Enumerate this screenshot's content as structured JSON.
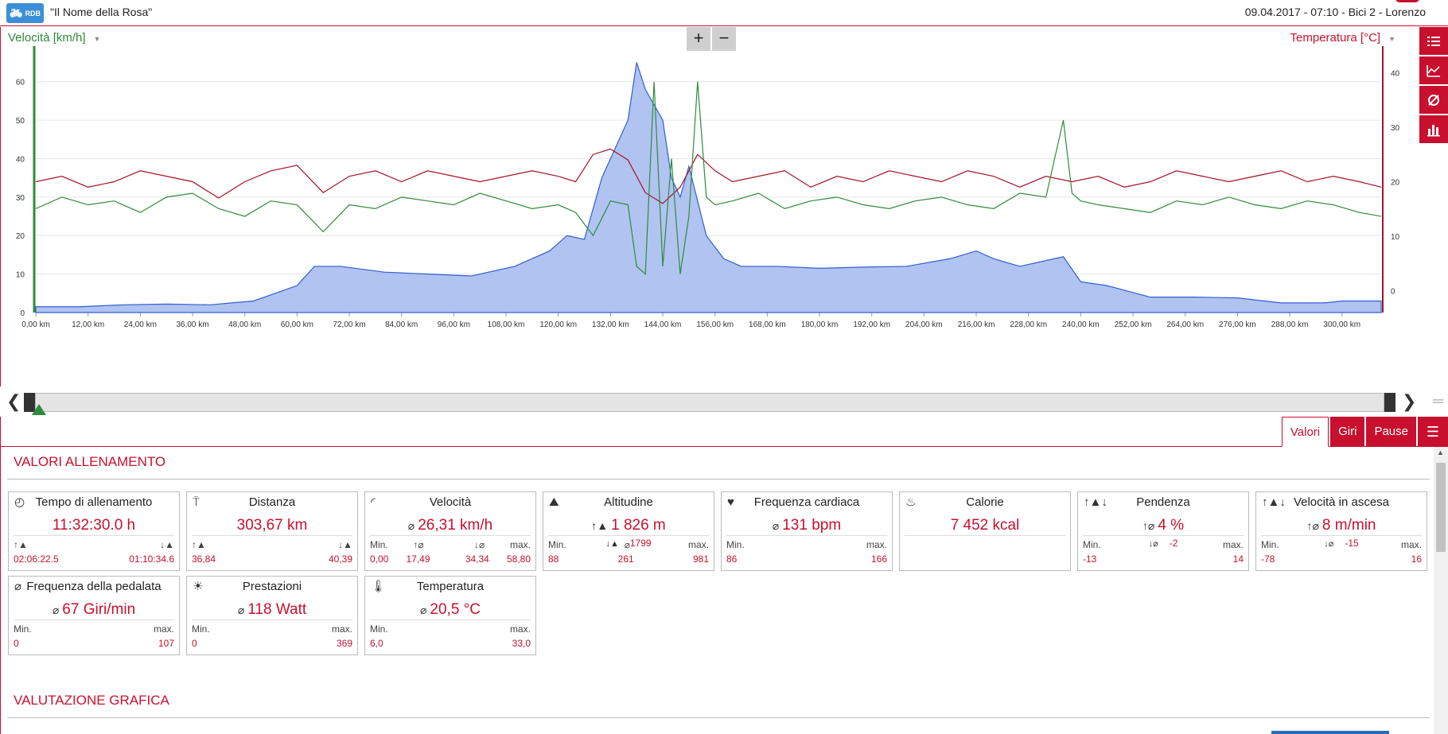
{
  "header": {
    "app_logo_text": "RDB",
    "title": "\"Il Nome della Rosa\"",
    "session_info": "09.04.2017  -  07:10  -  Bici 2  -  Lorenzo"
  },
  "chart": {
    "left_axis_label": "Velocità [km/h]",
    "right_axis_label": "Temperatura [°C]",
    "zoom_in": "+",
    "zoom_out": "−",
    "colors": {
      "speed": "#2e8b3a",
      "temperature": "#a4132a",
      "altitude_fill": "#a8bdf0",
      "altitude_line": "#2f5fd0",
      "accent": "#c8102e"
    }
  },
  "chart_data": {
    "type": "line",
    "x_label": "distance (km)",
    "x_ticks": [
      "0,00 km",
      "12,00 km",
      "24,00 km",
      "36,00 km",
      "48,00 km",
      "60,00 km",
      "72,00 km",
      "84,00 km",
      "96,00 km",
      "108,00 km",
      "120,00 km",
      "132,00 km",
      "144,00 km",
      "156,00 km",
      "168,00 km",
      "180,00 km",
      "192,00 km",
      "204,00 km",
      "216,00 km",
      "228,00 km",
      "240,00 km",
      "252,00 km",
      "264,00 km",
      "276,00 km",
      "288,00 km",
      "300,00 km"
    ],
    "xlim": [
      0,
      309
    ],
    "y_left_ticks": [
      0,
      10,
      20,
      30,
      40,
      50,
      60
    ],
    "y_left_lim": [
      0,
      68
    ],
    "y_right_ticks": [
      0,
      10,
      20,
      30,
      40
    ],
    "y_right_lim": [
      -4,
      44
    ],
    "series": [
      {
        "name": "Velocità [km/h]",
        "axis": "left",
        "kind": "line",
        "x": [
          0,
          6,
          12,
          18,
          24,
          30,
          36,
          42,
          48,
          54,
          60,
          66,
          72,
          78,
          84,
          90,
          96,
          102,
          108,
          114,
          120,
          124,
          128,
          132,
          136,
          138,
          140,
          142,
          144,
          146,
          148,
          150,
          152,
          154,
          156,
          160,
          166,
          172,
          178,
          184,
          190,
          196,
          202,
          208,
          214,
          220,
          226,
          232,
          236,
          238,
          240,
          244,
          250,
          256,
          262,
          268,
          274,
          280,
          286,
          292,
          298,
          304,
          309
        ],
        "y": [
          27,
          30,
          28,
          29,
          26,
          30,
          31,
          27,
          25,
          29,
          28,
          21,
          28,
          27,
          30,
          29,
          28,
          31,
          29,
          27,
          28,
          26,
          20,
          29,
          28,
          12,
          10,
          60,
          12,
          40,
          10,
          25,
          60,
          30,
          28,
          29,
          31,
          27,
          29,
          30,
          28,
          27,
          29,
          30,
          28,
          27,
          31,
          30,
          50,
          31,
          29,
          28,
          27,
          26,
          29,
          28,
          30,
          28,
          27,
          29,
          28,
          26,
          25
        ]
      },
      {
        "name": "Temperatura [°C]",
        "axis": "right",
        "kind": "line",
        "x": [
          0,
          6,
          12,
          18,
          24,
          30,
          36,
          42,
          48,
          54,
          60,
          66,
          72,
          78,
          84,
          90,
          96,
          102,
          108,
          114,
          120,
          124,
          128,
          132,
          136,
          140,
          144,
          148,
          152,
          156,
          160,
          166,
          172,
          178,
          184,
          190,
          196,
          202,
          208,
          214,
          220,
          226,
          232,
          238,
          244,
          250,
          256,
          262,
          268,
          274,
          280,
          286,
          292,
          298,
          304,
          309
        ],
        "y": [
          20,
          21,
          19,
          20,
          22,
          21,
          20,
          17,
          20,
          22,
          23,
          18,
          21,
          22,
          20,
          22,
          21,
          20,
          21,
          22,
          21,
          20,
          25,
          26,
          24,
          18,
          16,
          19,
          25,
          22,
          20,
          21,
          22,
          19,
          21,
          20,
          22,
          21,
          20,
          22,
          21,
          19,
          21,
          20,
          21,
          19,
          20,
          22,
          21,
          20,
          21,
          22,
          20,
          21,
          20,
          19
        ]
      },
      {
        "name": "Altitudine",
        "axis": "hidden",
        "kind": "area",
        "x": [
          0,
          10,
          20,
          30,
          40,
          45,
          50,
          55,
          60,
          64,
          70,
          80,
          90,
          100,
          110,
          118,
          122,
          126,
          130,
          134,
          136,
          138,
          140,
          144,
          146,
          148,
          150,
          154,
          158,
          162,
          170,
          180,
          190,
          200,
          210,
          216,
          220,
          226,
          234,
          236,
          240,
          246,
          256,
          266,
          276,
          286,
          296,
          300,
          309
        ],
        "y": [
          1.5,
          1.5,
          2,
          2.2,
          2,
          2.5,
          3,
          5,
          7,
          12,
          12,
          10.5,
          10,
          9.5,
          12,
          16,
          20,
          19,
          35,
          45,
          50,
          65,
          58,
          50,
          35,
          30,
          38,
          20,
          14,
          12,
          12,
          11.5,
          11.8,
          12,
          14,
          16,
          14,
          12,
          14,
          14.5,
          8,
          7,
          4,
          4,
          3.8,
          2.5,
          2.5,
          3,
          3
        ]
      }
    ]
  },
  "scroller": {
    "left_arrow": "❮",
    "right_arrow": "❯",
    "menu": "═"
  },
  "tabs": [
    {
      "label": "Valori",
      "active": true
    },
    {
      "label": "Giri",
      "active": false
    },
    {
      "label": "Pause",
      "active": false
    }
  ],
  "sections": {
    "values_title": "VALORI ALLENAMENTO",
    "graphics_title": "VALUTAZIONE GRAFICA"
  },
  "cards": [
    {
      "title": "Tempo di allenamento",
      "icon": "clock-icon",
      "value": "11:32:30.0 h",
      "foot_left_label": "↑▲",
      "foot_right_label": "↓▲",
      "foot_left_value": "02:06:22.5",
      "foot_right_value": "01:10:34.6"
    },
    {
      "title": "Distanza",
      "icon": "signpost-icon",
      "value": "303,67 km",
      "foot_left_label": "↑▲",
      "foot_right_label": "↓▲",
      "foot_left_value": "36,84",
      "foot_right_value": "40,39"
    },
    {
      "title": "Velocità",
      "icon": "speedometer-icon",
      "value": "26,31 km/h",
      "avg": "⌀",
      "foot_left_label": "Min.",
      "foot_mid1_label": "↑⌀",
      "foot_mid2_label": "↓⌀",
      "foot_right_label": "max.",
      "foot_left_value": "0,00",
      "foot_mid1_value": "17,49",
      "foot_mid2_value": "34,34",
      "foot_right_value": "58,80"
    },
    {
      "title": "Altitudine",
      "icon": "mountain-icon",
      "value": "1 826 m",
      "value_prefix": "↑▲",
      "sub_prefix": "↓▲",
      "sub_value": "1799",
      "foot_left_label": "Min.",
      "foot_mid_label": "⌀",
      "foot_right_label": "max.",
      "foot_left_value": "88",
      "foot_mid_value": "261",
      "foot_right_value": "981"
    },
    {
      "title": "Frequenza cardiaca",
      "icon": "heart-icon",
      "value": "131 bpm",
      "avg": "⌀",
      "foot_left_label": "Min.",
      "foot_right_label": "max.",
      "foot_left_value": "86",
      "foot_right_value": "166"
    },
    {
      "title": "Calorie",
      "icon": "flame-icon",
      "value": "7 452 kcal"
    },
    {
      "title": "Pendenza",
      "icon": "slope-icon",
      "value": "4 %",
      "value_prefix": "↑⌀",
      "sub_prefix": "↓⌀",
      "sub_value": "-2",
      "foot_left_label": "Min.",
      "foot_right_label": "max.",
      "foot_left_value": "-13",
      "foot_right_value": "14"
    },
    {
      "title": "Velocità in ascesa",
      "icon": "climb-icon",
      "value": "8 m/min",
      "value_prefix": "↑⌀",
      "sub_prefix": "↓⌀",
      "sub_value": "-15",
      "foot_left_label": "Min.",
      "foot_right_label": "max.",
      "foot_left_value": "-78",
      "foot_right_value": "16"
    },
    {
      "title": "Frequenza della pedalata",
      "icon": "cadence-icon",
      "value": "67 Giri/min",
      "avg": "⌀",
      "foot_left_label": "Min.",
      "foot_right_label": "max.",
      "foot_left_value": "0",
      "foot_right_value": "107"
    },
    {
      "title": "Prestazioni",
      "icon": "power-icon",
      "value": "118 Watt",
      "avg": "⌀",
      "foot_left_label": "Min.",
      "foot_right_label": "max.",
      "foot_left_value": "0",
      "foot_right_value": "369"
    },
    {
      "title": "Temperatura",
      "icon": "thermometer-icon",
      "value": "20,5 °C",
      "avg": "⌀",
      "foot_left_label": "Min.",
      "foot_right_label": "max.",
      "foot_left_value": "6,0",
      "foot_right_value": "33,0"
    }
  ]
}
